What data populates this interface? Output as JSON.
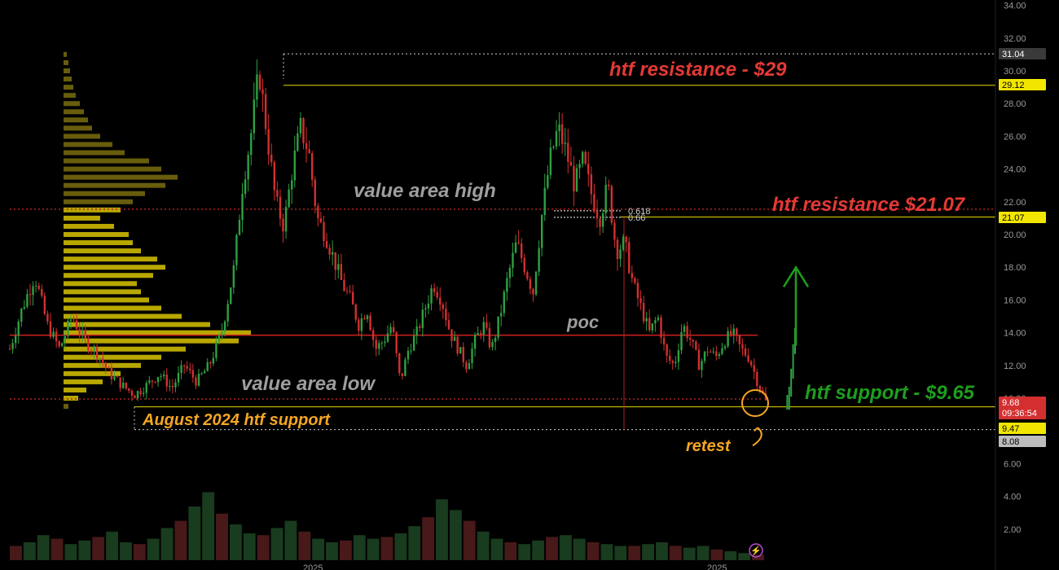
{
  "chart_data": {
    "type": "candlestick",
    "title": "",
    "xlabel": "",
    "ylabel": "",
    "ylim": [
      0,
      34.6
    ],
    "y_ticks": [
      "2.00",
      "4.00",
      "6.00",
      "8.00",
      "10.00",
      "12.00",
      "14.00",
      "16.00",
      "18.00",
      "20.00",
      "22.00",
      "24.00",
      "26.00",
      "28.00",
      "30.00",
      "32.00",
      "34.00"
    ],
    "x_tick_labels": [
      "2025",
      "2025"
    ],
    "grid": false,
    "levels": {
      "high_dotted": 31.04,
      "htf_resistance_29": 29.12,
      "value_area_high": 21.55,
      "fib_0618": 21.45,
      "fib_066": 21.05,
      "htf_resistance_2107": 21.07,
      "poc": 13.85,
      "value_area_low": 9.95,
      "htf_support": 9.65,
      "august_support": 9.47,
      "low_dotted": 8.08
    },
    "price_tags": [
      {
        "label": "31.04",
        "value": 31.04,
        "bg": "#3a3a3a",
        "fg": "#ffffff"
      },
      {
        "label": "29.12",
        "value": 29.12,
        "bg": "#f2e600",
        "fg": "#000000"
      },
      {
        "label": "21.07",
        "value": 21.07,
        "bg": "#f2e600",
        "fg": "#000000"
      },
      {
        "label": "9.68",
        "label2": "09:36:54",
        "value": 9.68,
        "bg": "#d32f2f",
        "fg": "#ffffff"
      },
      {
        "label": "9.47",
        "value": 9.47,
        "bg": "#f2e600",
        "fg": "#000000"
      },
      {
        "label": "8.08",
        "value": 8.08,
        "bg": "#bdbdbd",
        "fg": "#000000"
      }
    ],
    "annotations": [
      {
        "key": "htf_res_29",
        "text": "htf resistance - $29",
        "color": "#e53935"
      },
      {
        "key": "htf_res_21",
        "text": "htf resistance $21.07",
        "color": "#e53935"
      },
      {
        "key": "vah",
        "text": "value area high",
        "color": "#9e9e9e"
      },
      {
        "key": "poc",
        "text": "poc",
        "color": "#9e9e9e"
      },
      {
        "key": "val",
        "text": "value area low",
        "color": "#9e9e9e"
      },
      {
        "key": "htf_support",
        "text": "htf support - $9.65",
        "color": "#1e9e1e"
      },
      {
        "key": "aug_support",
        "text": "August 2024 htf support",
        "color": "#f5a623"
      },
      {
        "key": "retest",
        "text": "retest",
        "color": "#f5a623"
      },
      {
        "key": "fib618",
        "text": "0.618",
        "color": "#cccccc"
      },
      {
        "key": "fib66",
        "text": "0.66",
        "color": "#cccccc"
      }
    ],
    "price_path": [
      [
        0,
        13.0
      ],
      [
        3,
        15.5
      ],
      [
        6,
        17.5
      ],
      [
        9,
        14.5
      ],
      [
        12,
        13.0
      ],
      [
        15,
        15.0
      ],
      [
        18,
        13.5
      ],
      [
        21,
        12.8
      ],
      [
        24,
        11.5
      ],
      [
        27,
        10.8
      ],
      [
        30,
        10.2
      ],
      [
        33,
        10.8
      ],
      [
        36,
        11.5
      ],
      [
        39,
        10.6
      ],
      [
        42,
        12.0
      ],
      [
        45,
        11.0
      ],
      [
        48,
        12.0
      ],
      [
        51,
        14.0
      ],
      [
        54,
        18.0
      ],
      [
        56,
        23.0
      ],
      [
        58,
        26.0
      ],
      [
        60,
        30.0
      ],
      [
        62,
        26.0
      ],
      [
        64,
        22.0
      ],
      [
        66,
        20.5
      ],
      [
        68,
        24.0
      ],
      [
        70,
        26.5
      ],
      [
        72,
        25.0
      ],
      [
        74,
        21.0
      ],
      [
        76,
        20.0
      ],
      [
        78,
        18.5
      ],
      [
        80,
        17.0
      ],
      [
        82,
        16.0
      ],
      [
        84,
        14.5
      ],
      [
        86,
        15.5
      ],
      [
        88,
        13.0
      ],
      [
        90,
        13.5
      ],
      [
        92,
        14.5
      ],
      [
        94,
        11.0
      ],
      [
        96,
        13.0
      ],
      [
        98,
        14.0
      ],
      [
        100,
        15.5
      ],
      [
        102,
        17.0
      ],
      [
        104,
        16.0
      ],
      [
        106,
        14.0
      ],
      [
        108,
        13.0
      ],
      [
        110,
        12.0
      ],
      [
        112,
        13.5
      ],
      [
        114,
        14.5
      ],
      [
        116,
        13.0
      ],
      [
        118,
        15.0
      ],
      [
        120,
        17.5
      ],
      [
        122,
        19.5
      ],
      [
        124,
        18.0
      ],
      [
        126,
        16.5
      ],
      [
        128,
        21.0
      ],
      [
        130,
        24.5
      ],
      [
        132,
        26.5
      ],
      [
        134,
        25.0
      ],
      [
        136,
        23.0
      ],
      [
        138,
        24.5
      ],
      [
        140,
        22.5
      ],
      [
        142,
        21.0
      ],
      [
        144,
        23.0
      ],
      [
        146,
        19.0
      ],
      [
        148,
        19.5
      ],
      [
        150,
        17.0
      ],
      [
        152,
        15.5
      ],
      [
        154,
        14.0
      ],
      [
        156,
        15.0
      ],
      [
        158,
        12.5
      ],
      [
        160,
        12.0
      ],
      [
        162,
        14.5
      ],
      [
        164,
        13.5
      ],
      [
        166,
        12.0
      ],
      [
        168,
        13.0
      ],
      [
        170,
        12.5
      ],
      [
        172,
        13.5
      ],
      [
        174,
        14.0
      ],
      [
        176,
        13.0
      ],
      [
        178,
        12.5
      ],
      [
        180,
        11.0
      ],
      [
        182,
        9.8
      ]
    ],
    "bounce": [
      [
        0,
        9.9
      ],
      [
        2,
        9.6
      ],
      [
        4,
        10.4
      ],
      [
        6,
        11.5
      ],
      [
        8,
        13.0
      ],
      [
        10,
        14.0
      ]
    ],
    "profile": [
      [
        9.5,
        6
      ],
      [
        10.0,
        18
      ],
      [
        10.5,
        28
      ],
      [
        11.0,
        48
      ],
      [
        11.5,
        70
      ],
      [
        12.0,
        95
      ],
      [
        12.5,
        120
      ],
      [
        13.0,
        150
      ],
      [
        13.5,
        215
      ],
      [
        14.0,
        230
      ],
      [
        14.5,
        180
      ],
      [
        15.0,
        145
      ],
      [
        15.5,
        120
      ],
      [
        16.0,
        105
      ],
      [
        16.5,
        95
      ],
      [
        17.0,
        90
      ],
      [
        17.5,
        110
      ],
      [
        18.0,
        125
      ],
      [
        18.5,
        115
      ],
      [
        19.0,
        95
      ],
      [
        19.5,
        85
      ],
      [
        20.0,
        80
      ],
      [
        20.5,
        62
      ],
      [
        21.0,
        45
      ],
      [
        21.5,
        70
      ],
      [
        22.0,
        85
      ],
      [
        22.5,
        100
      ],
      [
        23.0,
        125
      ],
      [
        23.5,
        140
      ],
      [
        24.0,
        120
      ],
      [
        24.5,
        105
      ],
      [
        25.0,
        75
      ],
      [
        25.5,
        60
      ],
      [
        26.0,
        45
      ],
      [
        26.5,
        35
      ],
      [
        27.0,
        30
      ],
      [
        27.5,
        25
      ],
      [
        28.0,
        20
      ],
      [
        28.5,
        15
      ],
      [
        29.0,
        12
      ],
      [
        29.5,
        10
      ],
      [
        30.0,
        8
      ],
      [
        30.5,
        6
      ],
      [
        31.0,
        4
      ]
    ],
    "volume": [
      8,
      10,
      14,
      12,
      9,
      11,
      13,
      16,
      10,
      9,
      12,
      18,
      22,
      30,
      38,
      26,
      20,
      15,
      14,
      18,
      22,
      16,
      12,
      10,
      11,
      14,
      12,
      13,
      15,
      19,
      24,
      34,
      28,
      22,
      16,
      12,
      10,
      9,
      11,
      13,
      14,
      12,
      10,
      9,
      8,
      8,
      9,
      10,
      8,
      7,
      8,
      6,
      5,
      4,
      3
    ]
  }
}
